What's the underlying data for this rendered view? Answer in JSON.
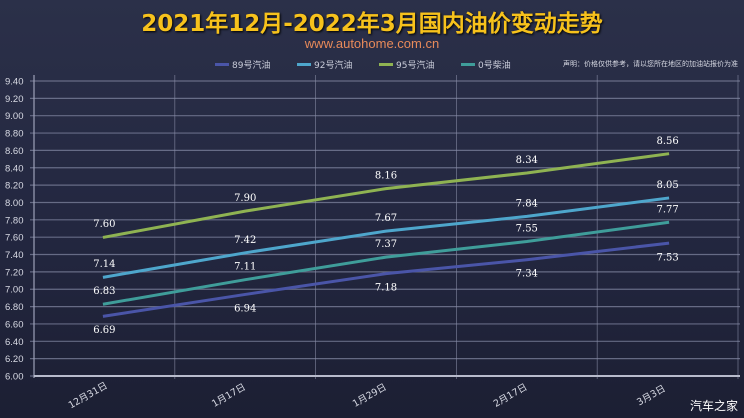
{
  "header": {
    "title": "2021年12月-2022年3月国内油价变动走势",
    "subtitle": "www.autohome.com.cn",
    "disclaimer": "声明：价格仅供参考，请以您所在地区的加油站报价为准"
  },
  "watermark": "汽车之家",
  "colors": {
    "background": "#262a42",
    "title": "#f7c21c",
    "subtitle": "#e88a5a",
    "grid": "#6a6f8a"
  },
  "chart_data": {
    "type": "line",
    "title": "2021年12月-2022年3月国内油价变动走势",
    "xlabel": "",
    "ylabel": "",
    "categories": [
      "12月31日",
      "1月17日",
      "1月29日",
      "2月17日",
      "3月3日"
    ],
    "ylim": [
      6.0,
      9.4
    ],
    "yticks": [
      "6.00",
      "6.20",
      "6.40",
      "6.60",
      "6.80",
      "7.00",
      "7.20",
      "7.40",
      "7.60",
      "7.80",
      "8.00",
      "8.20",
      "8.40",
      "8.60",
      "8.80",
      "9.00",
      "9.20",
      "9.40"
    ],
    "grid": true,
    "legend_position": "top",
    "series": [
      {
        "name": "89号汽油",
        "color": "#4a55a8",
        "values": [
          6.69,
          6.94,
          7.18,
          7.34,
          7.53
        ],
        "labels": [
          "6.69",
          "6.94",
          "7.18",
          "7.34",
          "7.53"
        ],
        "label_pos": "below"
      },
      {
        "name": "92号汽油",
        "color": "#4ea6cc",
        "values": [
          7.14,
          7.42,
          7.67,
          7.84,
          8.05
        ],
        "labels": [
          "7.14",
          "7.42",
          "7.67",
          "7.84",
          "8.05"
        ],
        "label_pos": "above"
      },
      {
        "name": "95号汽油",
        "color": "#8fb352",
        "values": [
          7.6,
          7.9,
          8.16,
          8.34,
          8.56
        ],
        "labels": [
          "7.60",
          "7.90",
          "8.16",
          "8.34",
          "8.56"
        ],
        "label_pos": "above"
      },
      {
        "name": "0号柴油",
        "color": "#3f9d9a",
        "values": [
          6.83,
          7.11,
          7.37,
          7.55,
          7.77
        ],
        "labels": [
          "6.83",
          "7.11",
          "7.37",
          "7.55",
          "7.77"
        ],
        "label_pos": "above"
      }
    ]
  }
}
